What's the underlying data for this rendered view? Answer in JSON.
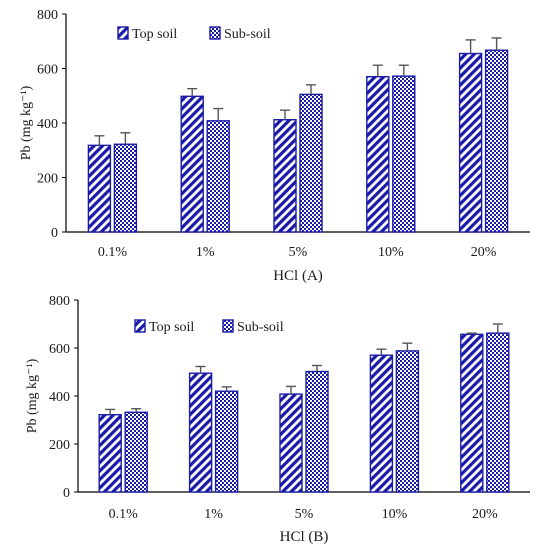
{
  "colors": {
    "bar_blue": "#1a1aa8",
    "bar_white": "#ffffff",
    "error_bar": "#555555"
  },
  "chart_data": [
    {
      "type": "bar",
      "panel": "A",
      "xlabel": "HCl (A)",
      "ylabel": "Pb (mg kg⁻¹)",
      "ylim": [
        0,
        800
      ],
      "yticks": [
        0,
        200,
        400,
        600,
        800
      ],
      "ytick_labels": [
        "0",
        "200",
        "400",
        "600",
        "800"
      ],
      "grid": false,
      "legend_position": "top-left",
      "categories": [
        "0.1%",
        "1%",
        "5%",
        "10%",
        "20%"
      ],
      "series": [
        {
          "name": "Top soil",
          "pattern": "diagonal-stripes",
          "values": [
            318,
            498,
            412,
            570,
            655
          ],
          "errors": [
            35,
            28,
            35,
            42,
            50
          ]
        },
        {
          "name": "Sub-soil",
          "pattern": "checkered",
          "values": [
            322,
            408,
            505,
            572,
            667
          ],
          "errors": [
            42,
            45,
            35,
            40,
            45
          ]
        }
      ]
    },
    {
      "type": "bar",
      "panel": "B",
      "xlabel": "HCl (B)",
      "ylabel": "Pb (mg kg⁻¹)",
      "ylim": [
        0,
        800
      ],
      "yticks": [
        0,
        200,
        400,
        600,
        800
      ],
      "ytick_labels": [
        "0",
        "200",
        "400",
        "600",
        "800"
      ],
      "grid": false,
      "legend_position": "top-left",
      "categories": [
        "0.1%",
        "1%",
        "5%",
        "10%",
        "20%"
      ],
      "series": [
        {
          "name": "Top soil",
          "pattern": "diagonal-stripes",
          "values": [
            322,
            495,
            408,
            570,
            657
          ],
          "errors": [
            22,
            28,
            32,
            25,
            5
          ]
        },
        {
          "name": "Sub-soil",
          "pattern": "checkered",
          "values": [
            332,
            420,
            502,
            588,
            662
          ],
          "errors": [
            15,
            18,
            25,
            32,
            38
          ]
        }
      ]
    }
  ]
}
